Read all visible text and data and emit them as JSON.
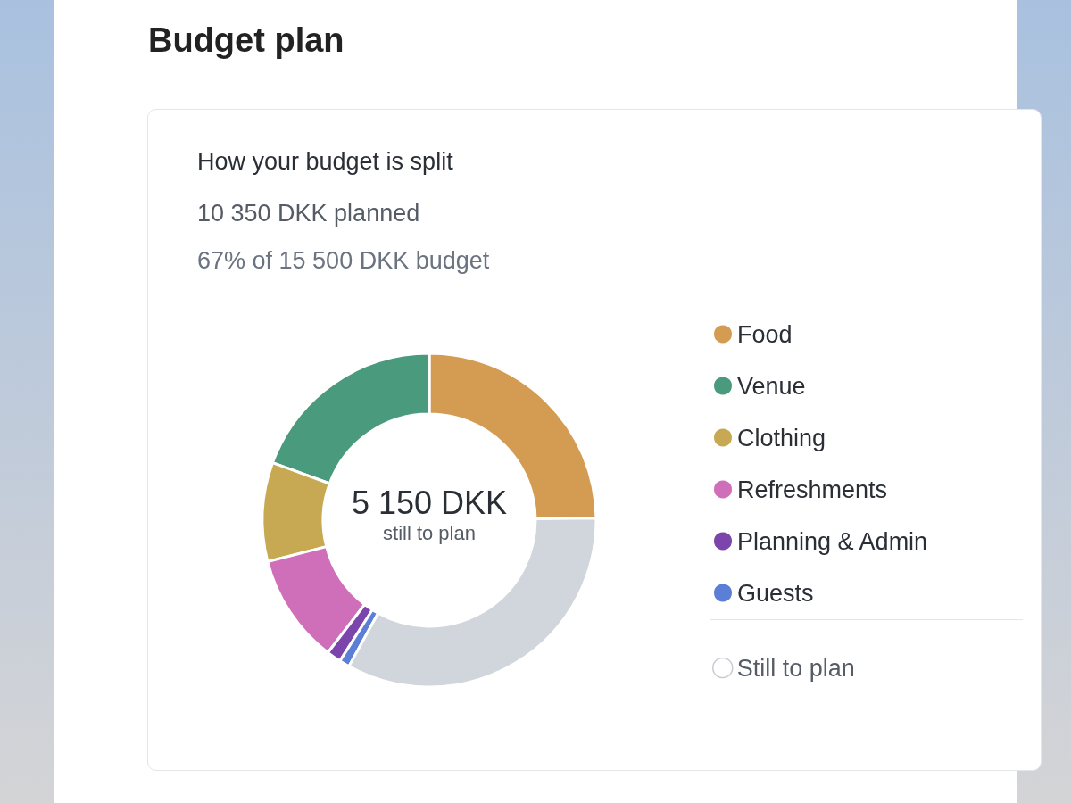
{
  "chart_data": {
    "type": "donut",
    "title": "Budget plan",
    "subtitle": "How your budget is split",
    "annotations": [
      "10 350 DKK planned",
      "67% of 15 500 DKK budget",
      "5 150 DKK still to plan"
    ],
    "categories": [
      "Food",
      "Venue",
      "Clothing",
      "Refreshments",
      "Planning & Admin",
      "Guests",
      "Still to plan"
    ],
    "values": [
      24.8,
      19.4,
      9.6,
      10.6,
      1.4,
      1.0,
      33.2
    ],
    "colors": [
      "#d49c52",
      "#4a9a7e",
      "#c6a952",
      "#cf6fba",
      "#7c45ab",
      "#5b7ed6",
      "#d1d5dc"
    ],
    "legend": "right"
  }
}
